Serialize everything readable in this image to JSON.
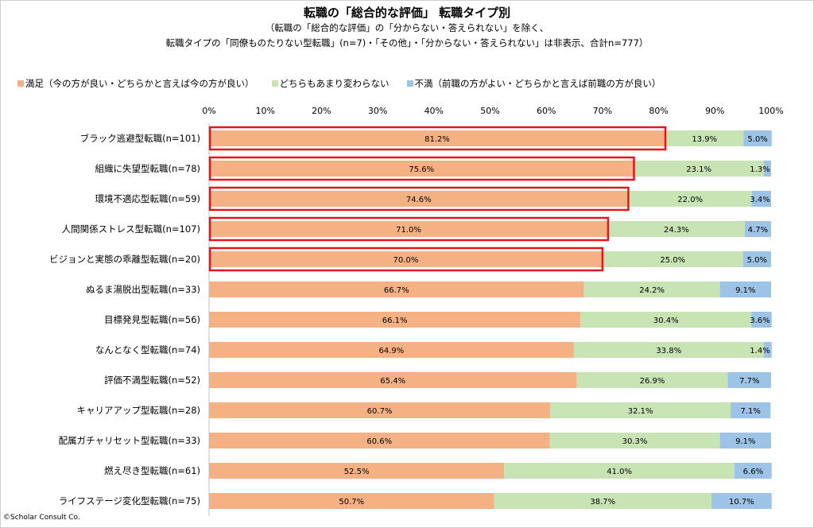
{
  "title": "転職の「総合的な評価」 転職タイプ別",
  "subtitle_1": "（転職の「総合的な評価」の「分からない・答えられない」を除く、",
  "subtitle_2": "転職タイプの「同僚ものたりない型転職」(n=7)・「その他」・「分からない・答えられない」は非表示、合計n=777）",
  "credit": "©Scholar Consult Co.",
  "colors": {
    "satisfied": "#f4b183",
    "neutral": "#c9e4b4",
    "dissatisfied": "#9dc3e6",
    "highlight": "#e8141b"
  },
  "chart_data": {
    "type": "bar",
    "orientation": "horizontal",
    "stacked": true,
    "title": "転職の「総合的な評価」 転職タイプ別",
    "x_ticks": [
      "0%",
      "10%",
      "20%",
      "30%",
      "40%",
      "50%",
      "60%",
      "70%",
      "80%",
      "90%",
      "100%"
    ],
    "xlim": [
      0,
      100
    ],
    "legend_position": "top",
    "categories": [
      "ブラック逃避型転職(n=101)",
      "組織に失望型転職(n=78)",
      "環境不適応型転職(n=59)",
      "人間関係ストレス型転職(n=107)",
      "ビジョンと実態の乖離型転職(n=20)",
      "ぬるま湯脱出型転職(n=33)",
      "目標発見型転職(n=56)",
      "なんとなく型転職(n=74)",
      "評価不満型転職(n=52)",
      "キャリアアップ型転職(n=28)",
      "配属ガチャリセット型転職(n=33)",
      "燃え尽き型転職(n=61)",
      "ライフステージ変化型転職(n=75)"
    ],
    "series": [
      {
        "name": "満足（今の方が良い・どちらかと言えば今の方が良い）",
        "color_key": "satisfied",
        "values": [
          81.2,
          75.6,
          74.6,
          71.0,
          70.0,
          66.7,
          66.1,
          64.9,
          65.4,
          60.7,
          60.6,
          52.5,
          50.7
        ],
        "labels": [
          "81.2%",
          "75.6%",
          "74.6%",
          "71.0%",
          "70.0%",
          "66.7%",
          "66.1%",
          "64.9%",
          "65.4%",
          "60.7%",
          "60.6%",
          "52.5%",
          "50.7%"
        ]
      },
      {
        "name": "どちらもあまり変わらない",
        "color_key": "neutral",
        "values": [
          13.9,
          23.1,
          22.0,
          24.3,
          25.0,
          24.2,
          30.4,
          33.8,
          26.9,
          32.1,
          30.3,
          41.0,
          38.7
        ],
        "labels": [
          "13.9%",
          "23.1%",
          "22.0%",
          "24.3%",
          "25.0%",
          "24.2%",
          "30.4%",
          "33.8%",
          "26.9%",
          "32.1%",
          "30.3%",
          "41.0%",
          "38.7%"
        ]
      },
      {
        "name": "不満（前職の方がよい・どちらかと言えば前職の方が良い）",
        "color_key": "dissatisfied",
        "values": [
          5.0,
          1.3,
          3.4,
          4.7,
          5.0,
          9.1,
          3.6,
          1.4,
          7.7,
          7.1,
          9.1,
          6.6,
          10.7
        ],
        "labels": [
          "5.0%",
          "1.3%",
          "3.4%",
          "4.7%",
          "5.0%",
          "9.1%",
          "3.6%",
          "1.4%",
          "7.7%",
          "7.1%",
          "9.1%",
          "6.6%",
          "10.7%"
        ]
      }
    ],
    "highlighted_categories": [
      0,
      1,
      2,
      3,
      4
    ]
  }
}
